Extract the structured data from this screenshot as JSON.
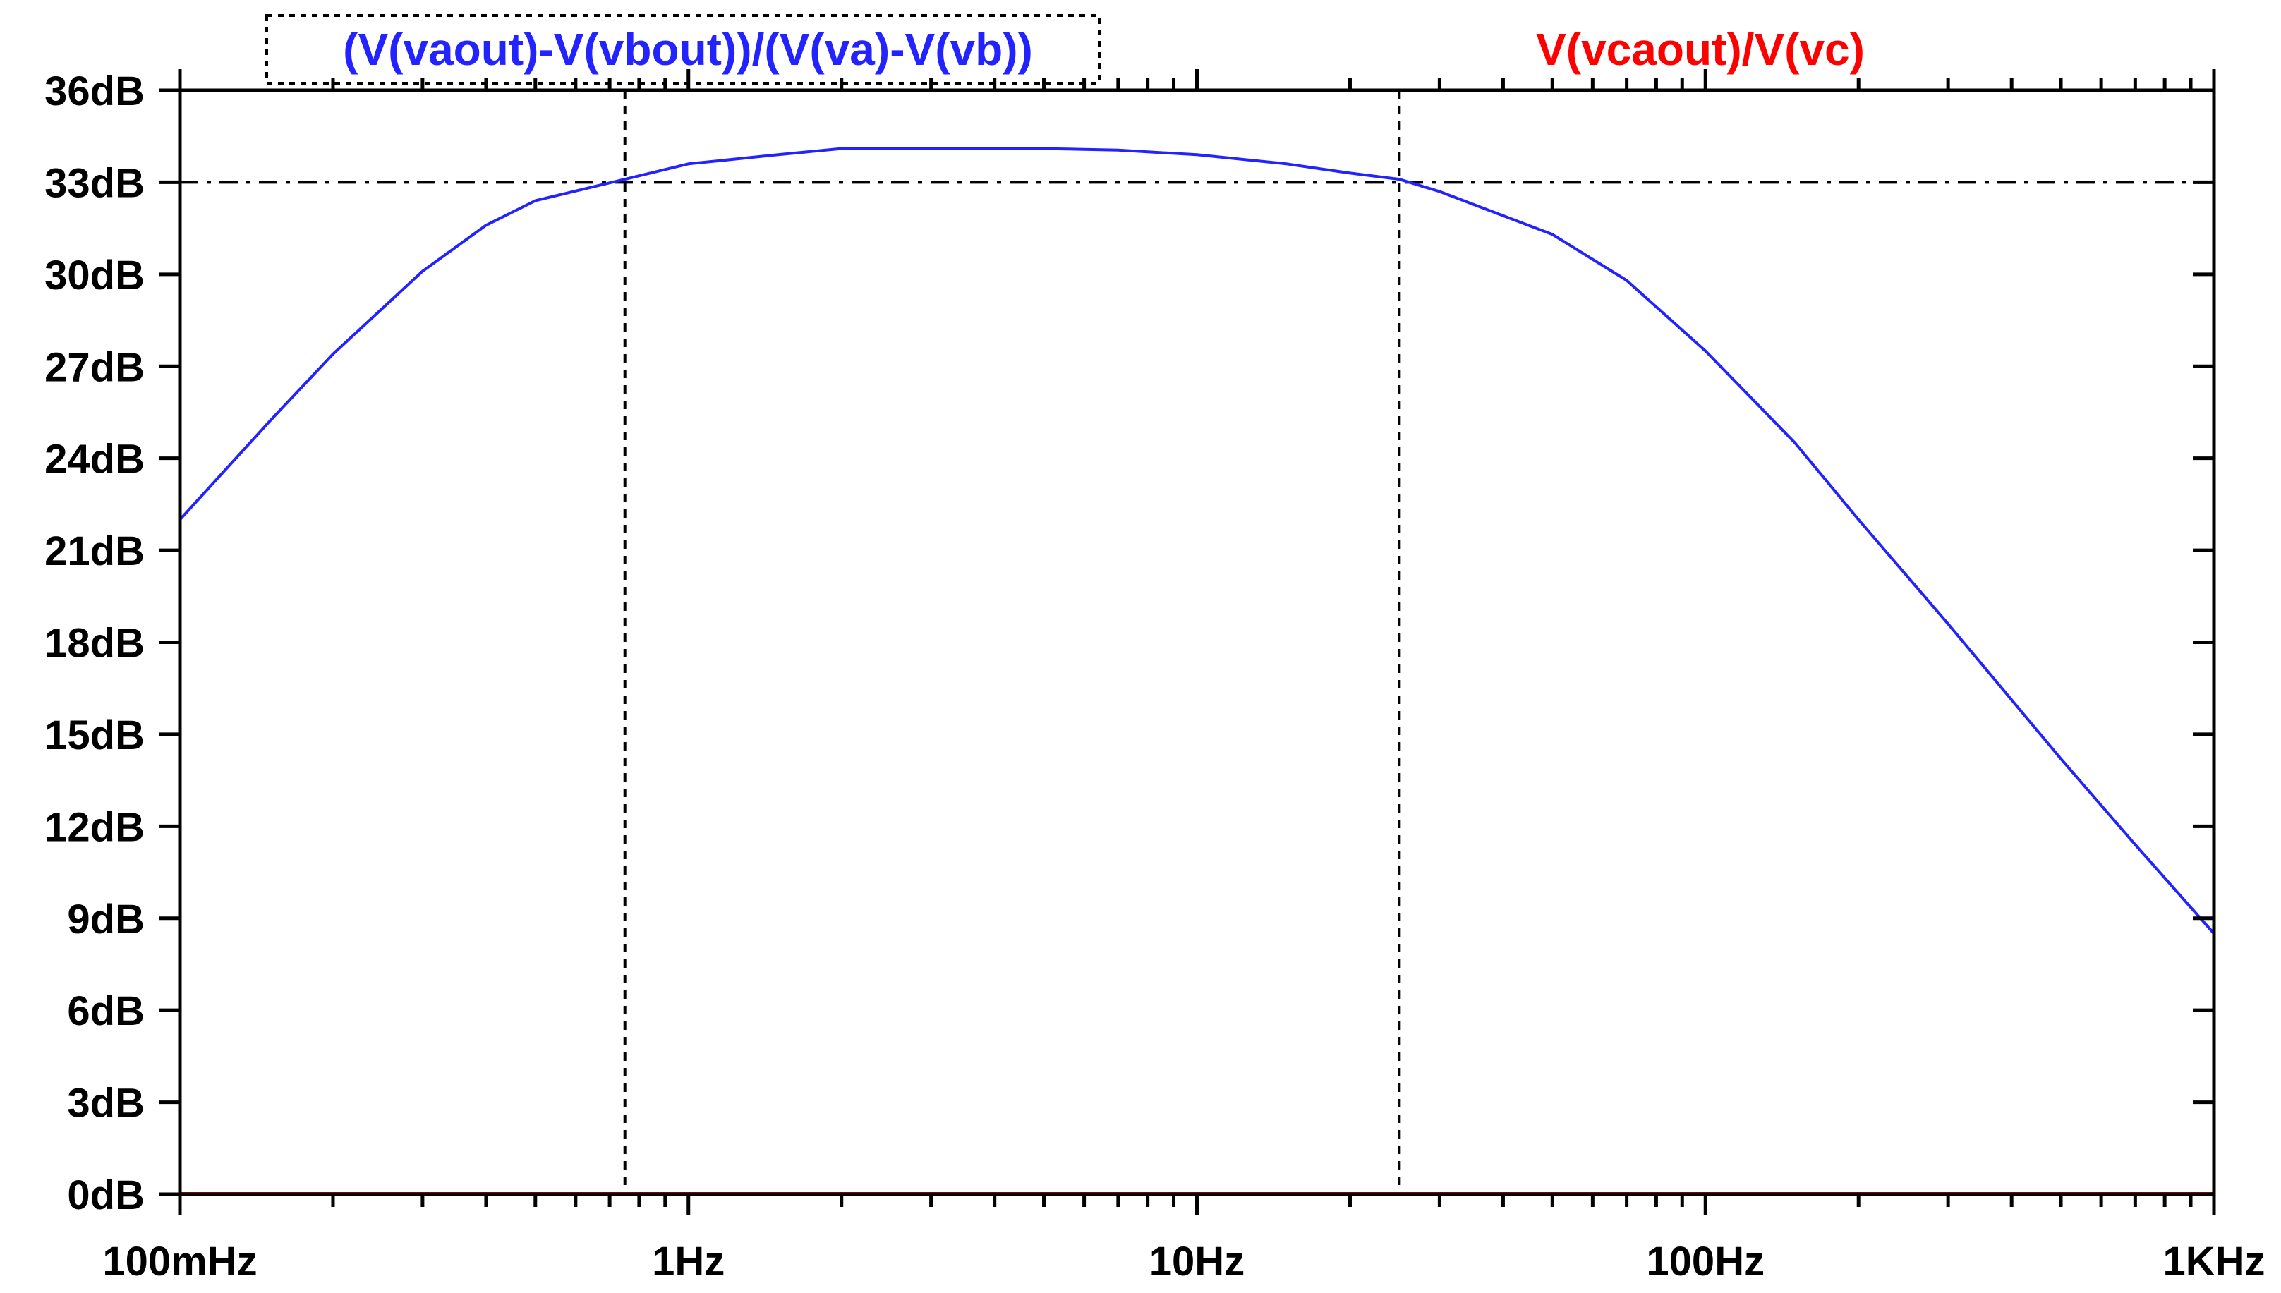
{
  "chart_data": {
    "type": "line",
    "title": "",
    "xlabel": "",
    "ylabel": "",
    "x_scale": "log",
    "xlim_hz": [
      0.1,
      1000
    ],
    "ylim_db": [
      0,
      36
    ],
    "x_ticks": [
      {
        "value": 0.1,
        "label": "100mHz"
      },
      {
        "value": 1,
        "label": "1Hz"
      },
      {
        "value": 10,
        "label": "10Hz"
      },
      {
        "value": 100,
        "label": "100Hz"
      },
      {
        "value": 1000,
        "label": "1KHz"
      }
    ],
    "y_ticks": [
      {
        "value": 0,
        "label": "0dB"
      },
      {
        "value": 3,
        "label": "3dB"
      },
      {
        "value": 6,
        "label": "6dB"
      },
      {
        "value": 9,
        "label": "9dB"
      },
      {
        "value": 12,
        "label": "12dB"
      },
      {
        "value": 15,
        "label": "15dB"
      },
      {
        "value": 18,
        "label": "18dB"
      },
      {
        "value": 21,
        "label": "21dB"
      },
      {
        "value": 24,
        "label": "24dB"
      },
      {
        "value": 27,
        "label": "27dB"
      },
      {
        "value": 30,
        "label": "30dB"
      },
      {
        "value": 33,
        "label": "33dB"
      },
      {
        "value": 36,
        "label": "36dB"
      }
    ],
    "series": [
      {
        "name": "(V(vaout)-V(vbout))/(V(va)-V(vb))",
        "color": "#2323ff",
        "x": [
          0.1,
          0.15,
          0.2,
          0.3,
          0.4,
          0.5,
          0.75,
          1,
          1.5,
          2,
          3,
          4,
          5,
          7,
          10,
          15,
          20,
          25,
          30,
          50,
          70,
          100,
          150,
          200,
          300,
          500,
          700,
          1000
        ],
        "y": [
          22,
          25.2,
          27.4,
          30.1,
          31.6,
          32.4,
          33.1,
          33.6,
          33.9,
          34.1,
          34.1,
          34.1,
          34.1,
          34.05,
          33.9,
          33.6,
          33.3,
          33.1,
          32.7,
          31.3,
          29.8,
          27.5,
          24.5,
          22.0,
          18.6,
          14.2,
          11.4,
          8.5
        ]
      },
      {
        "name": "V(vcaout)/V(vc)",
        "color": "#ff0000",
        "x": [
          0.1,
          1000
        ],
        "y": [
          0,
          0
        ]
      }
    ],
    "cursors": {
      "horizontal_db": 33,
      "vertical_hz": [
        0.75,
        25
      ]
    },
    "grid": false,
    "legend_position": "top"
  }
}
